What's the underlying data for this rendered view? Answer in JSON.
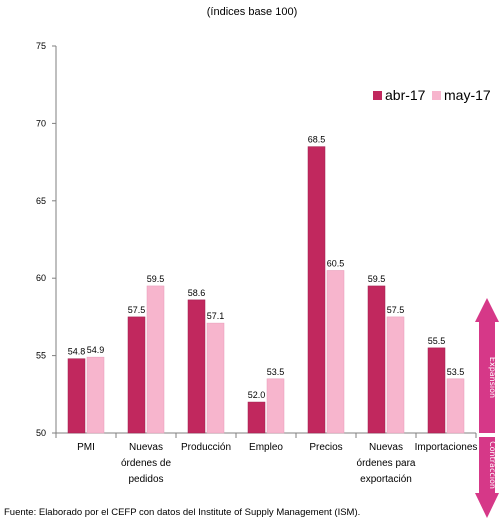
{
  "subtitle": "(índices base 100)",
  "source": "Fuente: Elaborado por el CEFP con datos del Institute of Supply Management (ISM).",
  "side_labels": {
    "expansion": "Expansión",
    "contraction": "Contracción"
  },
  "colors": {
    "abr": "#c1285e",
    "may": "#f7b5cd",
    "arrow_up": "#d63888",
    "arrow_down": "#d63888"
  },
  "chart_data": {
    "type": "bar",
    "title": "",
    "subtitle": "(índices base 100)",
    "xlabel": "",
    "ylabel": "",
    "ylim": [
      50,
      75
    ],
    "yticks": [
      50,
      55,
      60,
      65,
      70,
      75
    ],
    "grid": false,
    "legend_position": "top-right",
    "categories": [
      [
        "PMI"
      ],
      [
        "Nuevas",
        "órdenes de",
        "pedidos"
      ],
      [
        "Producción"
      ],
      [
        "Empleo"
      ],
      [
        "Precios"
      ],
      [
        "Nuevas",
        "órdenes para",
        "exportación"
      ],
      [
        "Importaciones"
      ]
    ],
    "series": [
      {
        "name": "abr-17",
        "values": [
          54.8,
          57.5,
          58.6,
          52.0,
          68.5,
          59.5,
          55.5
        ],
        "labels": [
          "54.8",
          "57.5",
          "58.6",
          "52.0",
          "68.5",
          "59.5",
          "55.5"
        ]
      },
      {
        "name": "may-17",
        "values": [
          54.9,
          59.5,
          57.1,
          53.5,
          60.5,
          57.5,
          53.5
        ],
        "labels": [
          "54.9",
          "59.5",
          "57.1",
          "53.5",
          "60.5",
          "57.5",
          "53.5"
        ]
      }
    ]
  }
}
